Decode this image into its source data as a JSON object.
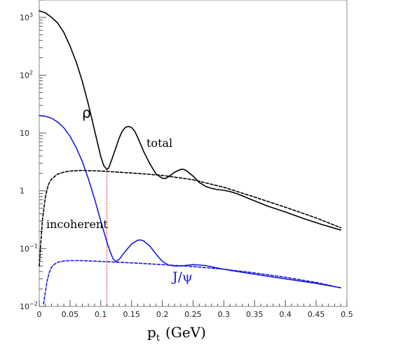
{
  "chart_data": {
    "type": "line",
    "title": "",
    "xlabel": "",
    "xlabel_main": "p",
    "xlabel_sub": "t",
    "xlabel_unit": "(GeV)",
    "ylabel": "",
    "xlim": [
      0,
      0.5
    ],
    "ylim": [
      0.01,
      2000
    ],
    "y_scale": "log",
    "grid": false,
    "x_ticks": [
      0,
      0.05,
      0.1,
      0.15,
      0.2,
      0.25,
      0.3,
      0.35,
      0.4,
      0.45,
      0.5
    ],
    "x_tick_labels": [
      "0",
      "0.05",
      "0.1",
      "0.15",
      "0.2",
      "0.25",
      "0.3",
      "0.35",
      "0.4",
      "0.45",
      "0.5"
    ],
    "y_ticks": [
      {
        "value": 0.01,
        "base": "10",
        "exp": "−2"
      },
      {
        "value": 0.1,
        "base": "10",
        "exp": "−1"
      },
      {
        "value": 1,
        "base": "1",
        "exp": ""
      },
      {
        "value": 10,
        "base": "10",
        "exp": ""
      },
      {
        "value": 100,
        "base": "10",
        "exp": "2"
      },
      {
        "value": 1000,
        "base": "10",
        "exp": "3"
      }
    ],
    "annotations": {
      "rho": "ρ",
      "total": "total",
      "incoherent": "incoherent",
      "jpsi": "J/ψ"
    },
    "colors": {
      "rho": "#000000",
      "jpsi": "#1a1adb",
      "marker": "#cc0000"
    },
    "vertical_marker_x": 0.11,
    "series": [
      {
        "key": "rho-total",
        "style": "solid",
        "color": "#000000",
        "x": [
          0.0,
          0.01,
          0.02,
          0.03,
          0.04,
          0.05,
          0.06,
          0.07,
          0.08,
          0.09,
          0.1,
          0.105,
          0.11,
          0.113,
          0.118,
          0.125,
          0.13,
          0.135,
          0.14,
          0.145,
          0.15,
          0.155,
          0.16,
          0.17,
          0.18,
          0.19,
          0.2,
          0.205,
          0.21,
          0.22,
          0.23,
          0.235,
          0.24,
          0.25,
          0.26,
          0.27,
          0.28,
          0.29,
          0.3,
          0.31,
          0.32,
          0.33,
          0.34,
          0.35,
          0.37,
          0.4,
          0.43,
          0.46,
          0.49
        ],
        "y": [
          1300,
          1200,
          1000,
          800,
          550,
          320,
          170,
          78,
          31,
          11,
          3.9,
          2.7,
          2.35,
          2.5,
          3.5,
          5.8,
          8.2,
          10.8,
          12.5,
          13.0,
          12.5,
          10.8,
          8.4,
          4.7,
          2.9,
          1.95,
          1.65,
          1.63,
          1.75,
          2.1,
          2.35,
          2.35,
          2.2,
          1.8,
          1.4,
          1.2,
          1.1,
          1.05,
          1.02,
          0.97,
          0.9,
          0.82,
          0.74,
          0.67,
          0.55,
          0.43,
          0.33,
          0.26,
          0.21
        ]
      },
      {
        "key": "rho-incoherent",
        "style": "dashed",
        "color": "#000000",
        "x": [
          0.0,
          0.005,
          0.01,
          0.015,
          0.02,
          0.03,
          0.04,
          0.05,
          0.07,
          0.1,
          0.13,
          0.16,
          0.2,
          0.25,
          0.3,
          0.35,
          0.4,
          0.45,
          0.49
        ],
        "y": [
          0.05,
          0.3,
          0.8,
          1.3,
          1.6,
          1.95,
          2.1,
          2.2,
          2.25,
          2.2,
          2.1,
          2.0,
          1.85,
          1.55,
          1.15,
          0.78,
          0.52,
          0.34,
          0.23
        ]
      },
      {
        "key": "jpsi-total",
        "style": "solid",
        "color": "#1a1adb",
        "x": [
          0.0,
          0.01,
          0.02,
          0.03,
          0.04,
          0.05,
          0.06,
          0.07,
          0.08,
          0.09,
          0.1,
          0.11,
          0.115,
          0.12,
          0.125,
          0.13,
          0.14,
          0.15,
          0.16,
          0.165,
          0.17,
          0.18,
          0.19,
          0.2,
          0.21,
          0.22,
          0.23,
          0.25,
          0.27,
          0.29,
          0.31,
          0.35,
          0.4,
          0.45,
          0.49
        ],
        "y": [
          20,
          19.5,
          18,
          15.5,
          12.3,
          8.8,
          5.6,
          3.2,
          1.6,
          0.72,
          0.3,
          0.13,
          0.09,
          0.066,
          0.06,
          0.065,
          0.09,
          0.12,
          0.14,
          0.141,
          0.135,
          0.11,
          0.08,
          0.06,
          0.052,
          0.05,
          0.05,
          0.053,
          0.051,
          0.046,
          0.042,
          0.036,
          0.03,
          0.025,
          0.021
        ]
      },
      {
        "key": "jpsi-incoherent",
        "style": "dashed",
        "color": "#1a1adb",
        "x": [
          0.007,
          0.01,
          0.013,
          0.016,
          0.02,
          0.025,
          0.03,
          0.04,
          0.05,
          0.07,
          0.1,
          0.13,
          0.16,
          0.2,
          0.25,
          0.3,
          0.35,
          0.4,
          0.45,
          0.49
        ],
        "y": [
          0.011,
          0.018,
          0.028,
          0.038,
          0.048,
          0.054,
          0.058,
          0.061,
          0.062,
          0.062,
          0.06,
          0.058,
          0.056,
          0.053,
          0.049,
          0.044,
          0.038,
          0.032,
          0.026,
          0.021
        ]
      }
    ]
  }
}
